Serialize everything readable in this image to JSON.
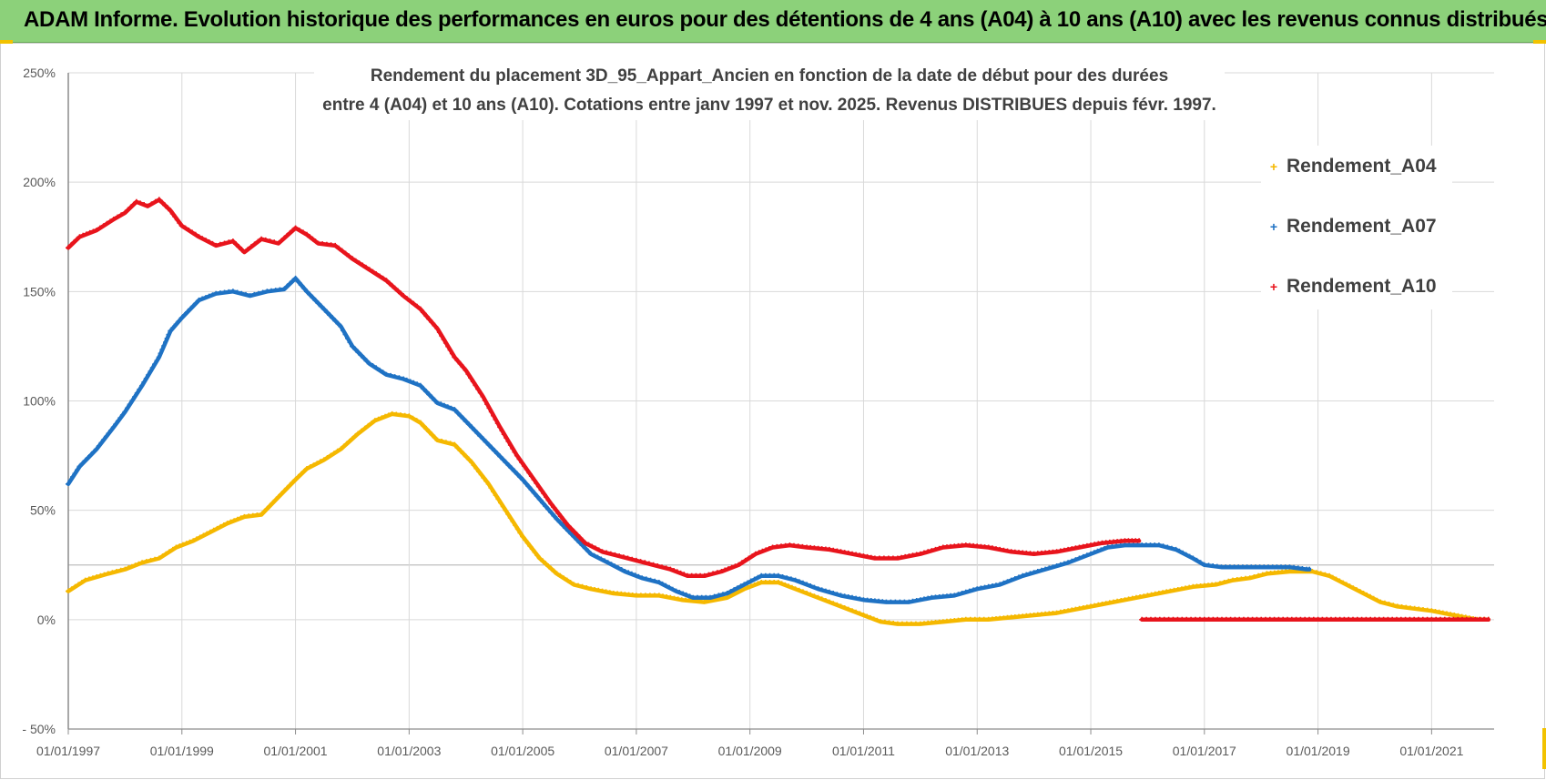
{
  "banner": {
    "title": "ADAM Informe. Evolution historique des performances en euros pour des détentions de 4 ans (A04) à 10 ans (A10) avec les revenus connus distribués"
  },
  "colors": {
    "banner_bg": "#8cd17a",
    "a04": "#f5b800",
    "a07": "#1f72c4",
    "a10": "#e8141c",
    "grid": "#d9d9d9",
    "axis_text": "#595959"
  },
  "chart_data": {
    "type": "scatter",
    "title_line1": "Rendement du placement 3D_95_Appart_Ancien en fonction de la date de début pour des durées",
    "title_line2": "entre 4 (A04) et 10 ans (A10). Cotations entre janv 1997 et nov. 2025. Revenus DISTRIBUES depuis févr. 1997.",
    "xlabel": "",
    "ylabel": "",
    "xlim": [
      1997.0,
      2022.1
    ],
    "ylim": [
      -50,
      250
    ],
    "yticks": [
      -50,
      0,
      50,
      100,
      150,
      200,
      250
    ],
    "ytick_labels": [
      "- 50%",
      "0%",
      "50%",
      "100%",
      "150%",
      "200%",
      "250%"
    ],
    "xticks": [
      1997,
      1999,
      2001,
      2003,
      2005,
      2007,
      2009,
      2011,
      2013,
      2015,
      2017,
      2019,
      2021
    ],
    "xtick_labels": [
      "01/01/1997",
      "01/01/1999",
      "01/01/2001",
      "01/01/2003",
      "01/01/2005",
      "01/01/2007",
      "01/01/2009",
      "01/01/2011",
      "01/01/2013",
      "01/01/2015",
      "01/01/2017",
      "01/01/2019",
      "01/01/2021"
    ],
    "legend_position": "right",
    "series": [
      {
        "name": "Rendement_A04",
        "color": "#f5b800",
        "points": [
          [
            1997.0,
            13
          ],
          [
            1997.3,
            18
          ],
          [
            1997.7,
            21
          ],
          [
            1998.0,
            23
          ],
          [
            1998.3,
            26
          ],
          [
            1998.6,
            28
          ],
          [
            1998.9,
            33
          ],
          [
            1999.2,
            36
          ],
          [
            1999.5,
            40
          ],
          [
            1999.8,
            44
          ],
          [
            2000.1,
            47
          ],
          [
            2000.4,
            48
          ],
          [
            2000.7,
            56
          ],
          [
            2001.0,
            64
          ],
          [
            2001.2,
            69
          ],
          [
            2001.5,
            73
          ],
          [
            2001.8,
            78
          ],
          [
            2002.1,
            85
          ],
          [
            2002.4,
            91
          ],
          [
            2002.7,
            94
          ],
          [
            2003.0,
            93
          ],
          [
            2003.2,
            90
          ],
          [
            2003.5,
            82
          ],
          [
            2003.8,
            80
          ],
          [
            2004.1,
            72
          ],
          [
            2004.4,
            62
          ],
          [
            2004.7,
            50
          ],
          [
            2005.0,
            38
          ],
          [
            2005.3,
            28
          ],
          [
            2005.6,
            21
          ],
          [
            2005.9,
            16
          ],
          [
            2006.2,
            14
          ],
          [
            2006.6,
            12
          ],
          [
            2007.0,
            11
          ],
          [
            2007.4,
            11
          ],
          [
            2007.8,
            9
          ],
          [
            2008.2,
            8
          ],
          [
            2008.6,
            10
          ],
          [
            2008.9,
            14
          ],
          [
            2009.2,
            17
          ],
          [
            2009.5,
            17
          ],
          [
            2009.8,
            14
          ],
          [
            2010.2,
            10
          ],
          [
            2010.6,
            6
          ],
          [
            2011.0,
            2
          ],
          [
            2011.3,
            -1
          ],
          [
            2011.6,
            -2
          ],
          [
            2012.0,
            -2
          ],
          [
            2012.4,
            -1
          ],
          [
            2012.8,
            0
          ],
          [
            2013.2,
            0
          ],
          [
            2013.6,
            1
          ],
          [
            2014.0,
            2
          ],
          [
            2014.4,
            3
          ],
          [
            2014.8,
            5
          ],
          [
            2015.2,
            7
          ],
          [
            2015.6,
            9
          ],
          [
            2016.0,
            11
          ],
          [
            2016.4,
            13
          ],
          [
            2016.8,
            15
          ],
          [
            2017.2,
            16
          ],
          [
            2017.5,
            18
          ],
          [
            2017.8,
            19
          ],
          [
            2018.1,
            21
          ],
          [
            2018.5,
            22
          ],
          [
            2018.9,
            22
          ],
          [
            2019.2,
            20
          ],
          [
            2019.5,
            16
          ],
          [
            2019.8,
            12
          ],
          [
            2020.1,
            8
          ],
          [
            2020.4,
            6
          ],
          [
            2020.7,
            5
          ],
          [
            2021.0,
            4
          ],
          [
            2021.4,
            2
          ],
          [
            2021.8,
            0
          ],
          [
            2022.0,
            0
          ]
        ]
      },
      {
        "name": "Rendement_A07",
        "color": "#1f72c4",
        "points": [
          [
            1997.0,
            62
          ],
          [
            1997.2,
            70
          ],
          [
            1997.5,
            78
          ],
          [
            1997.8,
            88
          ],
          [
            1998.0,
            95
          ],
          [
            1998.3,
            107
          ],
          [
            1998.6,
            120
          ],
          [
            1998.8,
            132
          ],
          [
            1999.0,
            138
          ],
          [
            1999.3,
            146
          ],
          [
            1999.6,
            149
          ],
          [
            1999.9,
            150
          ],
          [
            2000.2,
            148
          ],
          [
            2000.5,
            150
          ],
          [
            2000.8,
            151
          ],
          [
            2001.0,
            156
          ],
          [
            2001.2,
            150
          ],
          [
            2001.5,
            142
          ],
          [
            2001.8,
            134
          ],
          [
            2002.0,
            125
          ],
          [
            2002.3,
            117
          ],
          [
            2002.6,
            112
          ],
          [
            2002.9,
            110
          ],
          [
            2003.2,
            107
          ],
          [
            2003.5,
            99
          ],
          [
            2003.8,
            96
          ],
          [
            2004.1,
            88
          ],
          [
            2004.4,
            80
          ],
          [
            2004.7,
            72
          ],
          [
            2005.0,
            64
          ],
          [
            2005.3,
            55
          ],
          [
            2005.6,
            46
          ],
          [
            2005.9,
            38
          ],
          [
            2006.2,
            30
          ],
          [
            2006.5,
            26
          ],
          [
            2006.8,
            22
          ],
          [
            2007.1,
            19
          ],
          [
            2007.4,
            17
          ],
          [
            2007.7,
            13
          ],
          [
            2008.0,
            10
          ],
          [
            2008.3,
            10
          ],
          [
            2008.6,
            12
          ],
          [
            2008.9,
            16
          ],
          [
            2009.2,
            20
          ],
          [
            2009.5,
            20
          ],
          [
            2009.8,
            18
          ],
          [
            2010.2,
            14
          ],
          [
            2010.6,
            11
          ],
          [
            2011.0,
            9
          ],
          [
            2011.4,
            8
          ],
          [
            2011.8,
            8
          ],
          [
            2012.2,
            10
          ],
          [
            2012.6,
            11
          ],
          [
            2013.0,
            14
          ],
          [
            2013.4,
            16
          ],
          [
            2013.8,
            20
          ],
          [
            2014.2,
            23
          ],
          [
            2014.6,
            26
          ],
          [
            2015.0,
            30
          ],
          [
            2015.3,
            33
          ],
          [
            2015.6,
            34
          ],
          [
            2015.9,
            34
          ],
          [
            2016.2,
            34
          ],
          [
            2016.5,
            32
          ],
          [
            2016.8,
            28
          ],
          [
            2017.0,
            25
          ],
          [
            2017.3,
            24
          ],
          [
            2017.6,
            24
          ],
          [
            2017.9,
            24
          ],
          [
            2018.2,
            24
          ],
          [
            2018.5,
            24
          ],
          [
            2018.8,
            23
          ],
          [
            2018.85,
            23
          ]
        ]
      },
      {
        "name": "Rendement_A10",
        "color": "#e8141c",
        "points": [
          [
            1997.0,
            170
          ],
          [
            1997.2,
            175
          ],
          [
            1997.5,
            178
          ],
          [
            1997.8,
            183
          ],
          [
            1998.0,
            186
          ],
          [
            1998.2,
            191
          ],
          [
            1998.4,
            189
          ],
          [
            1998.6,
            192
          ],
          [
            1998.8,
            187
          ],
          [
            1999.0,
            180
          ],
          [
            1999.3,
            175
          ],
          [
            1999.6,
            171
          ],
          [
            1999.9,
            173
          ],
          [
            2000.1,
            168
          ],
          [
            2000.4,
            174
          ],
          [
            2000.7,
            172
          ],
          [
            2001.0,
            179
          ],
          [
            2001.2,
            176
          ],
          [
            2001.4,
            172
          ],
          [
            2001.7,
            171
          ],
          [
            2002.0,
            165
          ],
          [
            2002.3,
            160
          ],
          [
            2002.6,
            155
          ],
          [
            2002.9,
            148
          ],
          [
            2003.2,
            142
          ],
          [
            2003.5,
            133
          ],
          [
            2003.8,
            120
          ],
          [
            2004.0,
            114
          ],
          [
            2004.3,
            102
          ],
          [
            2004.6,
            88
          ],
          [
            2004.9,
            75
          ],
          [
            2005.2,
            64
          ],
          [
            2005.5,
            53
          ],
          [
            2005.8,
            43
          ],
          [
            2006.1,
            35
          ],
          [
            2006.4,
            31
          ],
          [
            2006.7,
            29
          ],
          [
            2007.0,
            27
          ],
          [
            2007.3,
            25
          ],
          [
            2007.6,
            23
          ],
          [
            2007.9,
            20
          ],
          [
            2008.2,
            20
          ],
          [
            2008.5,
            22
          ],
          [
            2008.8,
            25
          ],
          [
            2009.1,
            30
          ],
          [
            2009.4,
            33
          ],
          [
            2009.7,
            34
          ],
          [
            2010.0,
            33
          ],
          [
            2010.4,
            32
          ],
          [
            2010.8,
            30
          ],
          [
            2011.2,
            28
          ],
          [
            2011.6,
            28
          ],
          [
            2012.0,
            30
          ],
          [
            2012.4,
            33
          ],
          [
            2012.8,
            34
          ],
          [
            2013.2,
            33
          ],
          [
            2013.6,
            31
          ],
          [
            2014.0,
            30
          ],
          [
            2014.4,
            31
          ],
          [
            2014.8,
            33
          ],
          [
            2015.2,
            35
          ],
          [
            2015.6,
            36
          ],
          [
            2015.85,
            36
          ]
        ]
      },
      {
        "name": "Rendement_A10 (zero segment)",
        "color": "#e8141c",
        "points": [
          [
            2015.9,
            0
          ],
          [
            2017.0,
            0
          ],
          [
            2018.0,
            0
          ],
          [
            2019.0,
            0
          ],
          [
            2020.0,
            0
          ],
          [
            2021.0,
            0
          ],
          [
            2022.0,
            0
          ]
        ]
      }
    ]
  },
  "legend": {
    "items": [
      {
        "label": "Rendement_A04",
        "color": "#f5b800",
        "marker": "+"
      },
      {
        "label": "Rendement_A07",
        "color": "#1f72c4",
        "marker": "+"
      },
      {
        "label": "Rendement_A10",
        "color": "#e8141c",
        "marker": "+"
      }
    ]
  }
}
